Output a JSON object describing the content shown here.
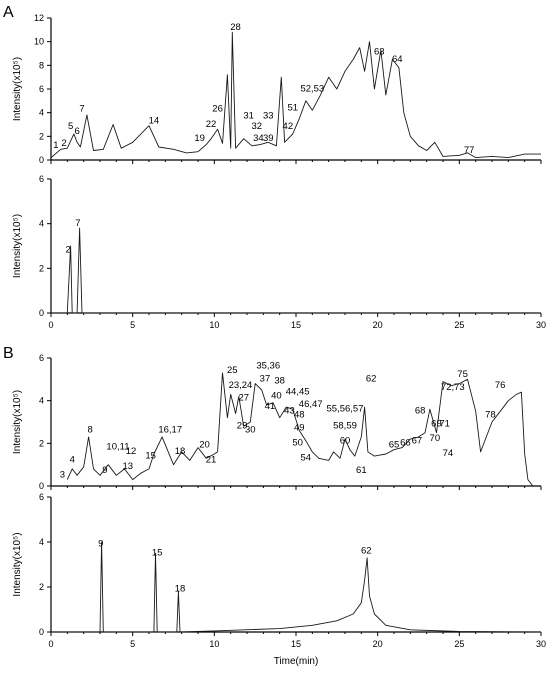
{
  "panels": [
    {
      "label": "A",
      "traces": [
        "A1",
        "A2"
      ]
    },
    {
      "label": "B",
      "traces": [
        "B1",
        "B2"
      ]
    }
  ],
  "x_tick_labels": [
    "0",
    "5",
    "10",
    "15",
    "20",
    "25",
    "30"
  ],
  "chart_data": [
    {
      "id": "A1",
      "type": "line",
      "xlabel": "",
      "ylabel": "Intensity(x10⁵)",
      "xlim": [
        0,
        30
      ],
      "ylim": [
        0,
        12
      ],
      "yticks": [
        0,
        2,
        4,
        6,
        8,
        10,
        12
      ],
      "trace": [
        [
          0,
          0.2
        ],
        [
          0.6,
          0.9
        ],
        [
          1.0,
          1.0
        ],
        [
          1.2,
          1.6
        ],
        [
          1.4,
          2.2
        ],
        [
          1.6,
          1.5
        ],
        [
          1.8,
          1.1
        ],
        [
          2.2,
          3.8
        ],
        [
          2.6,
          0.8
        ],
        [
          3.2,
          0.9
        ],
        [
          3.8,
          3.0
        ],
        [
          4.3,
          1.0
        ],
        [
          5.0,
          1.5
        ],
        [
          6.0,
          2.9
        ],
        [
          6.6,
          1.1
        ],
        [
          7.5,
          0.9
        ],
        [
          8.3,
          0.6
        ],
        [
          9.0,
          0.7
        ],
        [
          9.5,
          1.3
        ],
        [
          9.8,
          1.8
        ],
        [
          10.2,
          2.6
        ],
        [
          10.5,
          1.4
        ],
        [
          10.8,
          7.2
        ],
        [
          11.0,
          1.0
        ],
        [
          11.1,
          10.8
        ],
        [
          11.3,
          1.0
        ],
        [
          11.8,
          1.8
        ],
        [
          12.3,
          1.2
        ],
        [
          12.8,
          1.3
        ],
        [
          13.3,
          1.5
        ],
        [
          13.8,
          1.2
        ],
        [
          14.1,
          7.0
        ],
        [
          14.3,
          1.5
        ],
        [
          14.8,
          2.2
        ],
        [
          15.2,
          3.5
        ],
        [
          15.6,
          5.0
        ],
        [
          16.0,
          4.2
        ],
        [
          16.5,
          5.5
        ],
        [
          17.0,
          7.0
        ],
        [
          17.5,
          6.0
        ],
        [
          18.0,
          7.5
        ],
        [
          18.5,
          8.5
        ],
        [
          18.9,
          9.5
        ],
        [
          19.2,
          7.5
        ],
        [
          19.5,
          10.0
        ],
        [
          19.8,
          6.0
        ],
        [
          20.2,
          9.3
        ],
        [
          20.5,
          5.5
        ],
        [
          20.9,
          8.5
        ],
        [
          21.3,
          7.8
        ],
        [
          21.6,
          4.0
        ],
        [
          22.0,
          2.0
        ],
        [
          22.5,
          1.2
        ],
        [
          23.0,
          0.8
        ],
        [
          23.5,
          1.5
        ],
        [
          24.0,
          0.3
        ],
        [
          25.0,
          0.4
        ],
        [
          25.5,
          0.6
        ],
        [
          26.0,
          0.2
        ],
        [
          27.0,
          0.3
        ],
        [
          28.0,
          0.2
        ],
        [
          29.0,
          0.5
        ],
        [
          30.0,
          0.5
        ]
      ],
      "peak_labels": [
        {
          "text": "1",
          "x": 0.3,
          "y": 1.0
        },
        {
          "text": "2",
          "x": 0.8,
          "y": 1.2
        },
        {
          "text": "5",
          "x": 1.2,
          "y": 2.6
        },
        {
          "text": "6",
          "x": 1.6,
          "y": 2.2
        },
        {
          "text": "7",
          "x": 1.9,
          "y": 4.1
        },
        {
          "text": "14",
          "x": 6.3,
          "y": 3.1
        },
        {
          "text": "19",
          "x": 9.1,
          "y": 1.6
        },
        {
          "text": "22",
          "x": 9.8,
          "y": 2.8
        },
        {
          "text": "26",
          "x": 10.2,
          "y": 4.1
        },
        {
          "text": "28",
          "x": 11.3,
          "y": 11.0
        },
        {
          "text": "31",
          "x": 12.1,
          "y": 3.5
        },
        {
          "text": "32",
          "x": 12.6,
          "y": 2.6
        },
        {
          "text": "33",
          "x": 13.3,
          "y": 3.5
        },
        {
          "text": "34",
          "x": 12.7,
          "y": 1.6
        },
        {
          "text": "39",
          "x": 13.3,
          "y": 1.6
        },
        {
          "text": "42",
          "x": 14.5,
          "y": 2.6
        },
        {
          "text": "51",
          "x": 14.8,
          "y": 4.2
        },
        {
          "text": "52,53",
          "x": 16.0,
          "y": 5.8
        },
        {
          "text": "63",
          "x": 20.1,
          "y": 8.9
        },
        {
          "text": "64",
          "x": 21.2,
          "y": 8.3
        },
        {
          "text": "77",
          "x": 25.6,
          "y": 0.6
        }
      ]
    },
    {
      "id": "A2",
      "type": "line",
      "xlabel": "",
      "ylabel": "Intensity(x10⁵)",
      "xlim": [
        0,
        30
      ],
      "ylim": [
        0,
        6
      ],
      "yticks": [
        0,
        2,
        4,
        6
      ],
      "trace": [
        [
          0,
          0
        ],
        [
          1.0,
          0
        ],
        [
          1.2,
          3.0
        ],
        [
          1.3,
          0
        ],
        [
          1.6,
          0
        ],
        [
          1.75,
          3.8
        ],
        [
          1.9,
          0
        ],
        [
          30,
          0
        ]
      ],
      "peak_labels": [
        {
          "text": "2",
          "x": 1.05,
          "y": 2.7
        },
        {
          "text": "7",
          "x": 1.65,
          "y": 3.9
        }
      ]
    },
    {
      "id": "B1",
      "type": "line",
      "xlabel": "",
      "ylabel": "Intensity(x10⁵)",
      "xlim": [
        0,
        30
      ],
      "ylim": [
        0,
        6
      ],
      "yticks": [
        0,
        2,
        4,
        6
      ],
      "trace": [
        [
          1.0,
          0.3
        ],
        [
          1.3,
          0.8
        ],
        [
          1.6,
          0.5
        ],
        [
          2.0,
          0.9
        ],
        [
          2.3,
          2.3
        ],
        [
          2.6,
          0.8
        ],
        [
          3.0,
          0.5
        ],
        [
          3.5,
          1.0
        ],
        [
          4.0,
          0.5
        ],
        [
          4.5,
          0.8
        ],
        [
          5.0,
          0.3
        ],
        [
          5.5,
          0.6
        ],
        [
          6.0,
          0.8
        ],
        [
          6.3,
          1.5
        ],
        [
          6.8,
          2.3
        ],
        [
          7.5,
          1.0
        ],
        [
          8.0,
          1.6
        ],
        [
          8.5,
          1.2
        ],
        [
          9.0,
          1.8
        ],
        [
          9.5,
          1.3
        ],
        [
          10.0,
          1.5
        ],
        [
          10.2,
          1.6
        ],
        [
          10.5,
          5.3
        ],
        [
          10.8,
          3.2
        ],
        [
          11.0,
          4.3
        ],
        [
          11.3,
          3.4
        ],
        [
          11.5,
          4.2
        ],
        [
          11.8,
          2.8
        ],
        [
          12.2,
          3.0
        ],
        [
          12.5,
          4.8
        ],
        [
          12.9,
          4.5
        ],
        [
          13.2,
          3.8
        ],
        [
          13.6,
          3.9
        ],
        [
          14.0,
          3.2
        ],
        [
          14.4,
          3.7
        ],
        [
          14.8,
          3.6
        ],
        [
          15.2,
          2.6
        ],
        [
          15.7,
          2.0
        ],
        [
          16.0,
          1.6
        ],
        [
          16.4,
          1.3
        ],
        [
          17.0,
          1.2
        ],
        [
          17.3,
          1.6
        ],
        [
          17.7,
          1.3
        ],
        [
          18.0,
          2.2
        ],
        [
          18.3,
          1.7
        ],
        [
          18.6,
          1.4
        ],
        [
          19.0,
          2.3
        ],
        [
          19.2,
          3.7
        ],
        [
          19.4,
          1.6
        ],
        [
          19.8,
          1.4
        ],
        [
          20.5,
          1.5
        ],
        [
          21.0,
          1.7
        ],
        [
          21.5,
          1.8
        ],
        [
          22.0,
          2.2
        ],
        [
          22.5,
          2.3
        ],
        [
          22.9,
          2.5
        ],
        [
          23.2,
          3.6
        ],
        [
          23.6,
          2.5
        ],
        [
          24.0,
          4.9
        ],
        [
          24.5,
          4.7
        ],
        [
          25.0,
          4.8
        ],
        [
          25.5,
          5.0
        ],
        [
          26.0,
          3.5
        ],
        [
          26.3,
          1.6
        ],
        [
          27.0,
          3.0
        ],
        [
          27.5,
          3.5
        ],
        [
          28.0,
          4.0
        ],
        [
          28.5,
          4.3
        ],
        [
          28.8,
          4.4
        ],
        [
          29.0,
          1.5
        ],
        [
          29.2,
          0.3
        ],
        [
          29.5,
          0.0
        ]
      ],
      "peak_labels": [
        {
          "text": "3",
          "x": 0.7,
          "y": 0.4
        },
        {
          "text": "4",
          "x": 1.3,
          "y": 1.1
        },
        {
          "text": "8",
          "x": 2.4,
          "y": 2.5
        },
        {
          "text": "9",
          "x": 3.3,
          "y": 0.6
        },
        {
          "text": "10,11",
          "x": 4.1,
          "y": 1.7
        },
        {
          "text": "12",
          "x": 4.9,
          "y": 1.5
        },
        {
          "text": "13",
          "x": 4.7,
          "y": 0.8
        },
        {
          "text": "15",
          "x": 6.1,
          "y": 1.3
        },
        {
          "text": "16,17",
          "x": 7.3,
          "y": 2.5
        },
        {
          "text": "18",
          "x": 7.9,
          "y": 1.5
        },
        {
          "text": "20",
          "x": 9.4,
          "y": 1.8
        },
        {
          "text": "21",
          "x": 9.8,
          "y": 1.1
        },
        {
          "text": "25",
          "x": 11.1,
          "y": 5.3
        },
        {
          "text": "23,24",
          "x": 11.6,
          "y": 4.6
        },
        {
          "text": "27",
          "x": 11.8,
          "y": 4.0
        },
        {
          "text": "29",
          "x": 11.7,
          "y": 2.7
        },
        {
          "text": "30",
          "x": 12.2,
          "y": 2.5
        },
        {
          "text": "35,36",
          "x": 13.3,
          "y": 5.5
        },
        {
          "text": "37",
          "x": 13.1,
          "y": 4.9
        },
        {
          "text": "38",
          "x": 14.0,
          "y": 4.8
        },
        {
          "text": "40",
          "x": 13.8,
          "y": 4.1
        },
        {
          "text": "44,45",
          "x": 15.1,
          "y": 4.3
        },
        {
          "text": "41",
          "x": 13.4,
          "y": 3.6
        },
        {
          "text": "43",
          "x": 14.6,
          "y": 3.4
        },
        {
          "text": "46,47",
          "x": 15.9,
          "y": 3.7
        },
        {
          "text": "48",
          "x": 15.2,
          "y": 3.2
        },
        {
          "text": "49",
          "x": 15.2,
          "y": 2.6
        },
        {
          "text": "50",
          "x": 15.1,
          "y": 1.9
        },
        {
          "text": "54",
          "x": 15.6,
          "y": 1.2
        },
        {
          "text": "55,56,57",
          "x": 18.0,
          "y": 3.5
        },
        {
          "text": "58,59",
          "x": 18.0,
          "y": 2.7
        },
        {
          "text": "60",
          "x": 18.0,
          "y": 2.0
        },
        {
          "text": "61",
          "x": 19.0,
          "y": 0.6
        },
        {
          "text": "62",
          "x": 19.6,
          "y": 4.9
        },
        {
          "text": "65",
          "x": 21.0,
          "y": 1.8
        },
        {
          "text": "66",
          "x": 21.7,
          "y": 1.9
        },
        {
          "text": "67",
          "x": 22.4,
          "y": 2.0
        },
        {
          "text": "68",
          "x": 22.6,
          "y": 3.4
        },
        {
          "text": "69",
          "x": 23.6,
          "y": 2.8
        },
        {
          "text": "70",
          "x": 23.5,
          "y": 2.1
        },
        {
          "text": "71",
          "x": 24.1,
          "y": 2.8
        },
        {
          "text": "72,73",
          "x": 24.6,
          "y": 4.5
        },
        {
          "text": "74",
          "x": 24.3,
          "y": 1.4
        },
        {
          "text": "75",
          "x": 25.2,
          "y": 5.1
        },
        {
          "text": "76",
          "x": 27.5,
          "y": 4.6
        },
        {
          "text": "78",
          "x": 26.9,
          "y": 3.2
        }
      ]
    },
    {
      "id": "B2",
      "type": "line",
      "xlabel": "Time(min)",
      "ylabel": "Intensity(x10⁵)",
      "xlim": [
        0,
        30
      ],
      "ylim": [
        0,
        6
      ],
      "yticks": [
        0,
        2,
        4,
        6
      ],
      "trace": [
        [
          0,
          0
        ],
        [
          3.0,
          0
        ],
        [
          3.1,
          4.0
        ],
        [
          3.2,
          0
        ],
        [
          6.3,
          0
        ],
        [
          6.4,
          3.5
        ],
        [
          6.5,
          0
        ],
        [
          7.7,
          0
        ],
        [
          7.8,
          1.8
        ],
        [
          7.9,
          0
        ],
        [
          10.0,
          0.05
        ],
        [
          14.0,
          0.15
        ],
        [
          16.0,
          0.3
        ],
        [
          17.5,
          0.5
        ],
        [
          18.5,
          0.8
        ],
        [
          19.0,
          1.3
        ],
        [
          19.2,
          2.3
        ],
        [
          19.35,
          3.3
        ],
        [
          19.5,
          1.6
        ],
        [
          19.8,
          0.8
        ],
        [
          20.5,
          0.3
        ],
        [
          22.0,
          0.1
        ],
        [
          25.0,
          0.02
        ],
        [
          30,
          0
        ]
      ],
      "peak_labels": [
        {
          "text": "9",
          "x": 3.05,
          "y": 3.8
        },
        {
          "text": "15",
          "x": 6.5,
          "y": 3.4
        },
        {
          "text": "18",
          "x": 7.9,
          "y": 1.8
        },
        {
          "text": "62",
          "x": 19.3,
          "y": 3.5
        }
      ]
    }
  ]
}
